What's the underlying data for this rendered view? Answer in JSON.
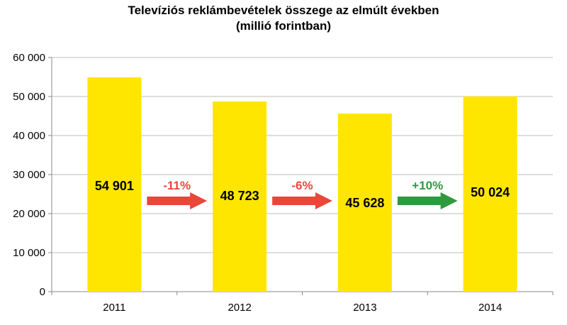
{
  "chart_data": {
    "type": "bar",
    "title": "Televíziós reklámbevételek összege az elmúlt években",
    "subtitle": "(millió forintban)",
    "categories": [
      "2011",
      "2012",
      "2013",
      "2014"
    ],
    "values": [
      54901,
      48723,
      45628,
      50024
    ],
    "value_labels": [
      "54 901",
      "48 723",
      "45 628",
      "50 024"
    ],
    "ylim": [
      0,
      60000
    ],
    "yticks": [
      0,
      10000,
      20000,
      30000,
      40000,
      50000,
      60000
    ],
    "ytick_labels": [
      "0",
      "10 000",
      "20 000",
      "30 000",
      "40 000",
      "50 000",
      "60 000"
    ],
    "grid": true,
    "bar_color": "#FFE600",
    "annotations": [
      {
        "between": [
          "2011",
          "2012"
        ],
        "text": "-11%",
        "direction": "down",
        "color": "#E8473A"
      },
      {
        "between": [
          "2012",
          "2013"
        ],
        "text": "-6%",
        "direction": "down",
        "color": "#E8473A"
      },
      {
        "between": [
          "2013",
          "2014"
        ],
        "text": "+10%",
        "direction": "up",
        "color": "#2E9A3E"
      }
    ]
  }
}
